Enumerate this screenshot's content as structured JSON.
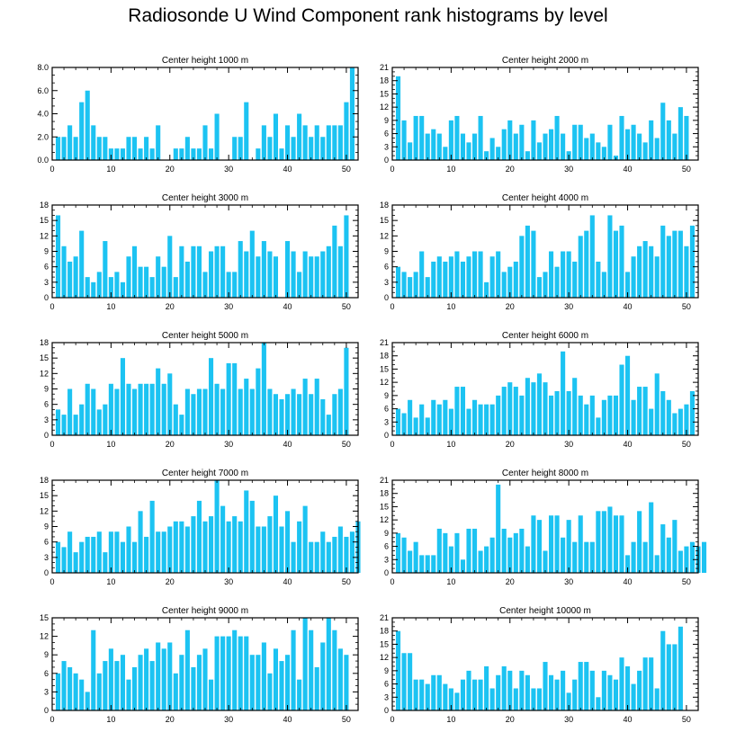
{
  "title": "Radiosonde U Wind Component rank histograms by level",
  "colors": {
    "bar": "#1cc3f2",
    "axis": "#000000"
  },
  "chart_data": [
    {
      "type": "bar",
      "title": "Center height 1000 m",
      "xlim": [
        0,
        52
      ],
      "ylim": [
        0,
        8
      ],
      "xticks": [
        0,
        10,
        20,
        30,
        40,
        50
      ],
      "yticks": [
        0,
        2,
        4,
        6,
        8
      ],
      "ytick_labels": [
        "0.0",
        "2.0",
        "4.0",
        "6.0",
        "8.0"
      ],
      "values": [
        2,
        2,
        3,
        2,
        5,
        6,
        3,
        2,
        2,
        1,
        1,
        1,
        2,
        2,
        1,
        2,
        1,
        3,
        0,
        0,
        1,
        1,
        2,
        1,
        1,
        3,
        1,
        4,
        0,
        0,
        2,
        2,
        5,
        0,
        1,
        3,
        2,
        4,
        1,
        3,
        2,
        4,
        3,
        2,
        3,
        2,
        3,
        3,
        3,
        5,
        8
      ]
    },
    {
      "type": "bar",
      "title": "Center height 2000 m",
      "xlim": [
        0,
        52
      ],
      "ylim": [
        0,
        21
      ],
      "xticks": [
        0,
        10,
        20,
        30,
        40,
        50
      ],
      "yticks": [
        0,
        3,
        6,
        9,
        12,
        15,
        18,
        21
      ],
      "ytick_labels": [
        "0",
        "3",
        "6",
        "9",
        "12",
        "15",
        "18",
        "21"
      ],
      "values": [
        19,
        9,
        4,
        10,
        10,
        6,
        7,
        6,
        3,
        9,
        10,
        6,
        4,
        6,
        10,
        2,
        5,
        3,
        7,
        9,
        6,
        8,
        2,
        9,
        4,
        6,
        7,
        10,
        6,
        2,
        8,
        8,
        5,
        6,
        4,
        3,
        8,
        1,
        10,
        7,
        8,
        6,
        4,
        9,
        5,
        13,
        9,
        6,
        12,
        10
      ]
    },
    {
      "type": "bar",
      "title": "Center height 3000 m",
      "xlim": [
        0,
        52
      ],
      "ylim": [
        0,
        18
      ],
      "xticks": [
        0,
        10,
        20,
        30,
        40,
        50
      ],
      "yticks": [
        0,
        3,
        6,
        9,
        12,
        15,
        18
      ],
      "ytick_labels": [
        "0",
        "3",
        "6",
        "9",
        "12",
        "15",
        "18"
      ],
      "values": [
        16,
        10,
        7,
        8,
        13,
        4,
        3,
        5,
        11,
        4,
        5,
        3,
        8,
        10,
        6,
        6,
        4,
        8,
        6,
        12,
        4,
        10,
        7,
        10,
        10,
        5,
        9,
        10,
        10,
        5,
        5,
        11,
        9,
        13,
        8,
        11,
        9,
        8,
        0,
        11,
        9,
        5,
        9,
        8,
        8,
        9,
        10,
        14,
        10,
        16
      ]
    },
    {
      "type": "bar",
      "title": "Center height 4000 m",
      "xlim": [
        0,
        52
      ],
      "ylim": [
        0,
        18
      ],
      "xticks": [
        0,
        10,
        20,
        30,
        40,
        50
      ],
      "yticks": [
        0,
        3,
        6,
        9,
        12,
        15,
        18
      ],
      "ytick_labels": [
        "0",
        "3",
        "6",
        "9",
        "12",
        "15",
        "18"
      ],
      "values": [
        6,
        5,
        4,
        5,
        9,
        4,
        7,
        8,
        7,
        8,
        9,
        7,
        8,
        9,
        9,
        3,
        8,
        9,
        5,
        6,
        7,
        12,
        14,
        13,
        4,
        5,
        9,
        6,
        9,
        9,
        7,
        12,
        13,
        16,
        7,
        5,
        16,
        13,
        14,
        5,
        8,
        10,
        11,
        10,
        8,
        14,
        12,
        13,
        13,
        10,
        14
      ]
    },
    {
      "type": "bar",
      "title": "Center height 5000 m",
      "xlim": [
        0,
        52
      ],
      "ylim": [
        0,
        18
      ],
      "xticks": [
        0,
        10,
        20,
        30,
        40,
        50
      ],
      "yticks": [
        0,
        3,
        6,
        9,
        12,
        15,
        18
      ],
      "ytick_labels": [
        "0",
        "3",
        "6",
        "9",
        "12",
        "15",
        "18"
      ],
      "values": [
        5,
        4,
        9,
        4,
        6,
        10,
        9,
        5,
        6,
        10,
        9,
        15,
        10,
        9,
        10,
        10,
        10,
        13,
        10,
        12,
        6,
        4,
        9,
        8,
        9,
        9,
        15,
        10,
        9,
        14,
        14,
        9,
        11,
        9,
        13,
        18,
        9,
        8,
        7,
        8,
        9,
        8,
        11,
        8,
        11,
        7,
        4,
        8,
        9,
        17
      ]
    },
    {
      "type": "bar",
      "title": "Center height 6000 m",
      "xlim": [
        0,
        52
      ],
      "ylim": [
        0,
        21
      ],
      "xticks": [
        0,
        10,
        20,
        30,
        40,
        50
      ],
      "yticks": [
        0,
        3,
        6,
        9,
        12,
        15,
        18,
        21
      ],
      "ytick_labels": [
        "0",
        "3",
        "6",
        "9",
        "12",
        "15",
        "18",
        "21"
      ],
      "values": [
        6,
        5,
        8,
        4,
        7,
        4,
        8,
        7,
        8,
        6,
        11,
        11,
        6,
        8,
        7,
        7,
        7,
        9,
        11,
        12,
        11,
        9,
        13,
        12,
        14,
        12,
        9,
        10,
        19,
        10,
        13,
        9,
        7,
        9,
        4,
        8,
        9,
        9,
        16,
        18,
        8,
        11,
        11,
        6,
        14,
        10,
        8,
        5,
        6,
        7,
        10
      ]
    },
    {
      "type": "bar",
      "title": "Center height 7000 m",
      "xlim": [
        0,
        52
      ],
      "ylim": [
        0,
        18
      ],
      "xticks": [
        0,
        10,
        20,
        30,
        40,
        50
      ],
      "yticks": [
        0,
        3,
        6,
        9,
        12,
        15,
        18
      ],
      "ytick_labels": [
        "0",
        "3",
        "6",
        "9",
        "12",
        "15",
        "18"
      ],
      "values": [
        6,
        5,
        8,
        4,
        6,
        7,
        7,
        8,
        4,
        8,
        8,
        6,
        9,
        6,
        12,
        7,
        14,
        8,
        8,
        9,
        10,
        10,
        9,
        11,
        14,
        10,
        11,
        18,
        13,
        10,
        11,
        10,
        16,
        14,
        9,
        9,
        11,
        15,
        9,
        12,
        6,
        10,
        13,
        6,
        6,
        8,
        6,
        7,
        9,
        7,
        8,
        10
      ]
    },
    {
      "type": "bar",
      "title": "Center height 8000 m",
      "xlim": [
        0,
        52
      ],
      "ylim": [
        0,
        21
      ],
      "xticks": [
        0,
        10,
        20,
        30,
        40,
        50
      ],
      "yticks": [
        0,
        3,
        6,
        9,
        12,
        15,
        18,
        21
      ],
      "ytick_labels": [
        "0",
        "3",
        "6",
        "9",
        "12",
        "15",
        "18",
        "21"
      ],
      "values": [
        9,
        8,
        5,
        7,
        4,
        4,
        4,
        10,
        9,
        6,
        9,
        3,
        10,
        10,
        5,
        6,
        8,
        20,
        10,
        8,
        9,
        10,
        6,
        13,
        12,
        5,
        13,
        13,
        8,
        12,
        7,
        13,
        7,
        7,
        14,
        14,
        15,
        13,
        13,
        4,
        7,
        14,
        7,
        16,
        4,
        11,
        8,
        12,
        5,
        6,
        7,
        6,
        7
      ]
    },
    {
      "type": "bar",
      "title": "Center height 9000 m",
      "xlim": [
        0,
        52
      ],
      "ylim": [
        0,
        15
      ],
      "xticks": [
        0,
        10,
        20,
        30,
        40,
        50
      ],
      "yticks": [
        0,
        3,
        6,
        9,
        12,
        15
      ],
      "ytick_labels": [
        "0",
        "3",
        "6",
        "9",
        "12",
        "15"
      ],
      "values": [
        6,
        8,
        7,
        6,
        5,
        3,
        13,
        6,
        8,
        10,
        8,
        9,
        5,
        7,
        9,
        10,
        8,
        11,
        10,
        11,
        6,
        9,
        13,
        7,
        9,
        10,
        5,
        12,
        12,
        12,
        13,
        12,
        12,
        9,
        9,
        11,
        6,
        10,
        8,
        9,
        13,
        5,
        15,
        13,
        7,
        11,
        15,
        13,
        10,
        9
      ]
    },
    {
      "type": "bar",
      "title": "Center height 10000 m",
      "xlim": [
        0,
        52
      ],
      "ylim": [
        0,
        21
      ],
      "xticks": [
        0,
        10,
        20,
        30,
        40,
        50
      ],
      "yticks": [
        0,
        3,
        6,
        9,
        12,
        15,
        18,
        21
      ],
      "ytick_labels": [
        "0",
        "3",
        "6",
        "9",
        "12",
        "15",
        "18",
        "21"
      ],
      "values": [
        18,
        13,
        13,
        7,
        7,
        6,
        8,
        8,
        6,
        5,
        4,
        7,
        9,
        7,
        7,
        10,
        5,
        8,
        10,
        9,
        5,
        9,
        8,
        5,
        5,
        11,
        8,
        7,
        9,
        4,
        7,
        11,
        11,
        9,
        3,
        9,
        8,
        7,
        12,
        10,
        6,
        9,
        12,
        12,
        5,
        18,
        15,
        15,
        19
      ]
    }
  ]
}
